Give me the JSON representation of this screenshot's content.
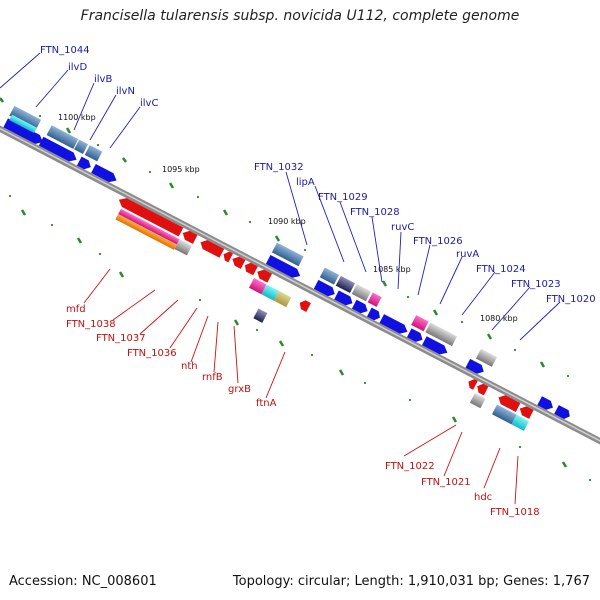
{
  "title": "Francisella tularensis subsp. novicida U112, complete genome",
  "footer": {
    "accession": "Accession: NC_008601",
    "topology": "Topology: circular; Length: 1,910,031 bp; Genes: 1,767"
  },
  "colors": {
    "backbone": "#8c8c8c",
    "forward_gene": "#1010e0",
    "reverse_gene": "#e01010",
    "label_forward": "#1a1aa8",
    "label_reverse": "#c01010",
    "tick": "#2a8a2a"
  },
  "kbp_markers": [
    "1100 kbp",
    "1095 kbp",
    "1090 kbp",
    "1085 kbp",
    "1080 kbp"
  ],
  "labels_forward": [
    "FTN_1044",
    "ilvD",
    "ilvB",
    "ilvN",
    "ilvC",
    "FTN_1032",
    "lipA",
    "FTN_1029",
    "FTN_1028",
    "ruvC",
    "FTN_1026",
    "ruvA",
    "FTN_1024",
    "FTN_1023",
    "FTN_1020"
  ],
  "labels_reverse": [
    "mfd",
    "FTN_1038",
    "FTN_1037",
    "FTN_1036",
    "nth",
    "rnfB",
    "grxB",
    "ftnA",
    "FTN_1022",
    "FTN_1021",
    "hdc",
    "FTN_1018"
  ]
}
